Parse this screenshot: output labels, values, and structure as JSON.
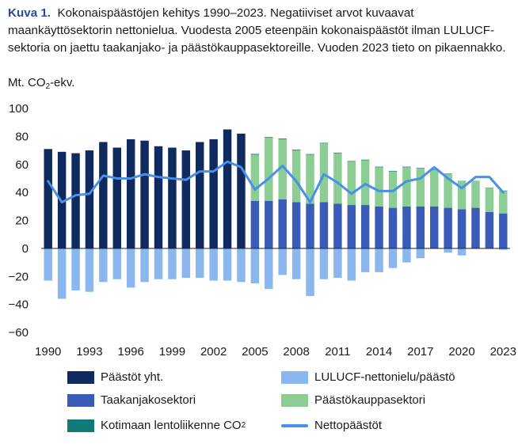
{
  "caption": {
    "figure_label": "Kuva 1.",
    "text": "Kokonaispäästöjen kehitys 1990–2023. Negatiiviset arvot kuvaavat maankäyttösektorin nettonielua. Vuodesta 2005 eteenpäin kokonaispäästöt ilman LULUCF-sektoria on jaettu taakanjako- ja päästökauppasektoreille. Vuoden 2023 tieto on pikaennakko."
  },
  "chart_data": {
    "type": "bar",
    "title": "Kokonaispäästöjen kehitys 1990–2023",
    "ylabel": "Mt. CO2-ekv.",
    "ylabel_main": "Mt. CO",
    "ylabel_sub": "2",
    "ylabel_suffix": "-ekv.",
    "ylim": [
      -60,
      100
    ],
    "yticks": [
      100,
      80,
      60,
      40,
      20,
      0,
      -20,
      -40,
      -60
    ],
    "ytick_labels": [
      "100",
      "80",
      "60",
      "40",
      "20",
      "0",
      "−20",
      "−40",
      "−60"
    ],
    "xtick_labels": [
      "1990",
      "1993",
      "1996",
      "1999",
      "2002",
      "2005",
      "2008",
      "2011",
      "2014",
      "2017",
      "2020",
      "2023"
    ],
    "categories": [
      "1990",
      "1991",
      "1992",
      "1993",
      "1994",
      "1995",
      "1996",
      "1997",
      "1998",
      "1999",
      "2000",
      "2001",
      "2002",
      "2003",
      "2004",
      "2005",
      "2006",
      "2007",
      "2008",
      "2009",
      "2010",
      "2011",
      "2012",
      "2013",
      "2014",
      "2015",
      "2016",
      "2017",
      "2018",
      "2019",
      "2020",
      "2021",
      "2022",
      "2023"
    ],
    "grid": false,
    "legend_position": "bottom",
    "series": [
      {
        "name": "Päästöt yht.",
        "key": "total",
        "color": "#0e2a5e",
        "values": [
          71,
          69,
          68,
          70,
          76,
          72,
          78,
          77,
          73,
          72,
          70,
          76,
          78,
          85,
          82,
          null,
          null,
          null,
          null,
          null,
          null,
          null,
          null,
          null,
          null,
          null,
          null,
          null,
          null,
          null,
          null,
          null,
          null,
          null
        ]
      },
      {
        "name": "Taakanjakosektori",
        "key": "effort",
        "color": "#3a5cb8",
        "values": [
          null,
          null,
          null,
          null,
          null,
          null,
          null,
          null,
          null,
          null,
          null,
          null,
          null,
          null,
          null,
          34,
          34,
          35,
          33,
          32,
          33,
          32,
          31,
          31,
          30,
          29,
          30,
          30,
          30,
          29,
          28,
          29,
          26,
          25
        ]
      },
      {
        "name": "Päästökauppasektori",
        "key": "ets",
        "color": "#8ccd94",
        "values": [
          null,
          null,
          null,
          null,
          null,
          null,
          null,
          null,
          null,
          null,
          null,
          null,
          null,
          null,
          null,
          33,
          45,
          43,
          37,
          35,
          42,
          36,
          31,
          32,
          28,
          26,
          28,
          27,
          26,
          24,
          20,
          19,
          17,
          16
        ]
      },
      {
        "name": "Kotimaan lentoliikenne CO2",
        "key": "aviation",
        "color": "#0f7a78",
        "values": [
          null,
          null,
          null,
          null,
          null,
          null,
          null,
          null,
          null,
          null,
          null,
          null,
          null,
          null,
          null,
          0.5,
          0.5,
          0.5,
          0.5,
          0.4,
          0.4,
          0.4,
          0.4,
          0.4,
          0.4,
          0.4,
          0.4,
          0.4,
          0.4,
          0.4,
          0.2,
          0.2,
          0.3,
          0.3
        ]
      },
      {
        "name": "LULUCF-nettonielu/päästö",
        "key": "lulucf",
        "color": "#8ab8ee",
        "values": [
          -23,
          -36,
          -30,
          -31,
          -24,
          -22,
          -28,
          -24,
          -22,
          -22,
          -21,
          -21,
          -23,
          -23,
          -24,
          -25,
          -29,
          -19,
          -22,
          -34,
          -22,
          -21,
          -23,
          -17,
          -17,
          -14,
          -10,
          -7,
          2,
          -3,
          -5,
          3,
          4,
          -1
        ]
      },
      {
        "name": "Nettopäästöt",
        "key": "net",
        "color": "#4a8fe8",
        "values": [
          48,
          33,
          38,
          39,
          52,
          50,
          50,
          53,
          51,
          50,
          49,
          55,
          55,
          62,
          58,
          42,
          50,
          59,
          48,
          33,
          53,
          47,
          39,
          46,
          41,
          41,
          48,
          50,
          58,
          50,
          43,
          51,
          51,
          40
        ]
      }
    ]
  },
  "legend": {
    "items": [
      {
        "label": "Päästöt yht.",
        "kind": "swatch",
        "series": "total"
      },
      {
        "label": "LULUCF-nettonielu/päästö",
        "kind": "swatch",
        "series": "lulucf"
      },
      {
        "label": "Taakanjakosektori",
        "kind": "swatch",
        "series": "effort"
      },
      {
        "label": "Päästökauppasektori",
        "kind": "swatch",
        "series": "ets"
      },
      {
        "label": "Kotimaan lentoliikenne CO",
        "label_sub": "2",
        "kind": "swatch",
        "series": "aviation"
      },
      {
        "label": "Nettopäästöt",
        "kind": "line",
        "series": "net"
      }
    ]
  }
}
